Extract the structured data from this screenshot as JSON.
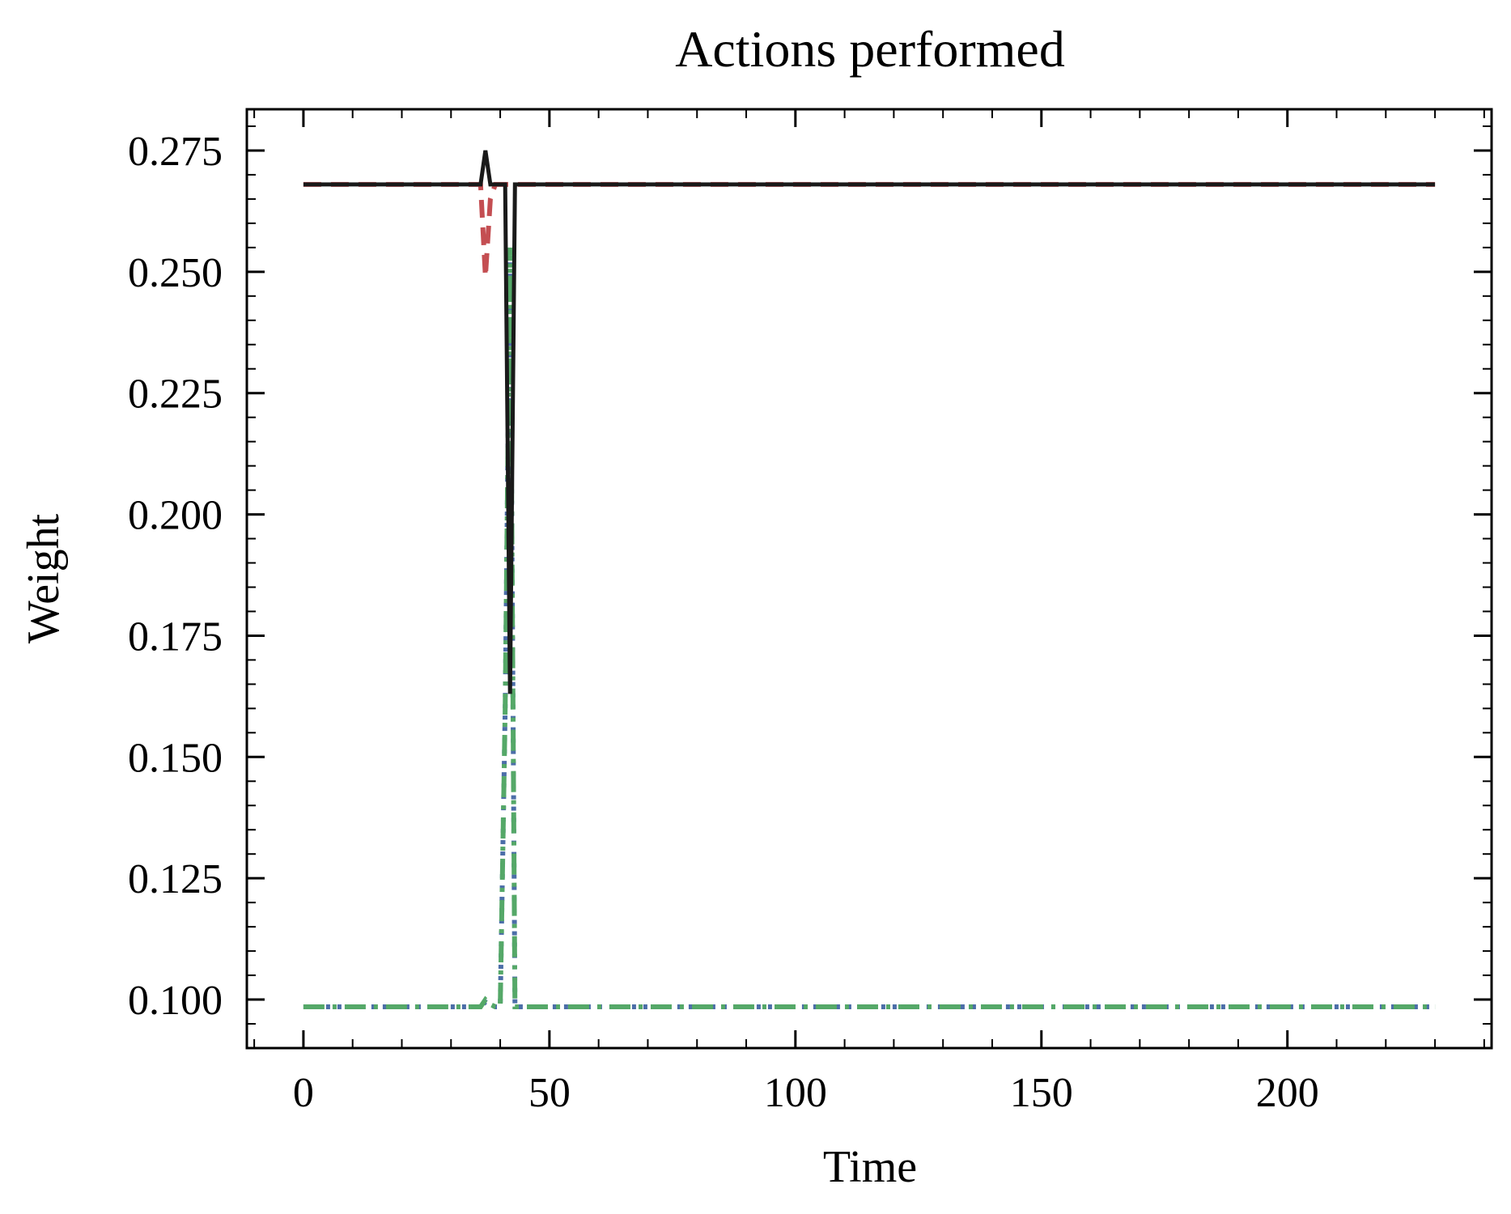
{
  "chart_data": {
    "type": "line",
    "title": "Actions performed",
    "xlabel": "Time",
    "ylabel": "Weight",
    "xlim": [
      -11.5,
      241.5
    ],
    "ylim": [
      0.09,
      0.2835
    ],
    "x_ticks": [
      0,
      50,
      100,
      150,
      200
    ],
    "x_tick_labels": [
      "0",
      "50",
      "100",
      "150",
      "200"
    ],
    "y_ticks": [
      0.1,
      0.125,
      0.15,
      0.175,
      0.2,
      0.225,
      0.25,
      0.275
    ],
    "y_tick_labels": [
      "0.100",
      "0.125",
      "0.150",
      "0.175",
      "0.200",
      "0.225",
      "0.250",
      "0.275"
    ],
    "grid": false,
    "series": [
      {
        "color": "#4c6ea8",
        "style": "dotted",
        "points": [
          [
            0,
            0.0985
          ],
          [
            36,
            0.0985
          ],
          [
            37,
            0.0995
          ],
          [
            38,
            0.099
          ],
          [
            39,
            0.0985
          ],
          [
            40,
            0.0985
          ],
          [
            41,
            0.16
          ],
          [
            42,
            0.255
          ],
          [
            43,
            0.0985
          ],
          [
            230,
            0.0985
          ]
        ]
      },
      {
        "color": "#c44e52",
        "style": "dashed",
        "points": [
          [
            0,
            0.268
          ],
          [
            36,
            0.268
          ],
          [
            37,
            0.249
          ],
          [
            38,
            0.265
          ],
          [
            39,
            0.268
          ],
          [
            230,
            0.268
          ]
        ]
      },
      {
        "color": "#55a868",
        "style": "dashdot",
        "points": [
          [
            0,
            0.0985
          ],
          [
            36,
            0.0985
          ],
          [
            37,
            0.1
          ],
          [
            38,
            0.099
          ],
          [
            39,
            0.0985
          ],
          [
            40,
            0.0985
          ],
          [
            41,
            0.16
          ],
          [
            42,
            0.255
          ],
          [
            43,
            0.0985
          ],
          [
            230,
            0.0985
          ]
        ]
      },
      {
        "color": "#1a1a1a",
        "style": "solid",
        "points": [
          [
            0,
            0.268
          ],
          [
            36,
            0.268
          ],
          [
            37,
            0.275
          ],
          [
            38,
            0.268
          ],
          [
            40,
            0.268
          ],
          [
            41,
            0.268
          ],
          [
            42,
            0.163
          ],
          [
            43,
            0.268
          ],
          [
            230,
            0.268
          ]
        ]
      }
    ]
  }
}
